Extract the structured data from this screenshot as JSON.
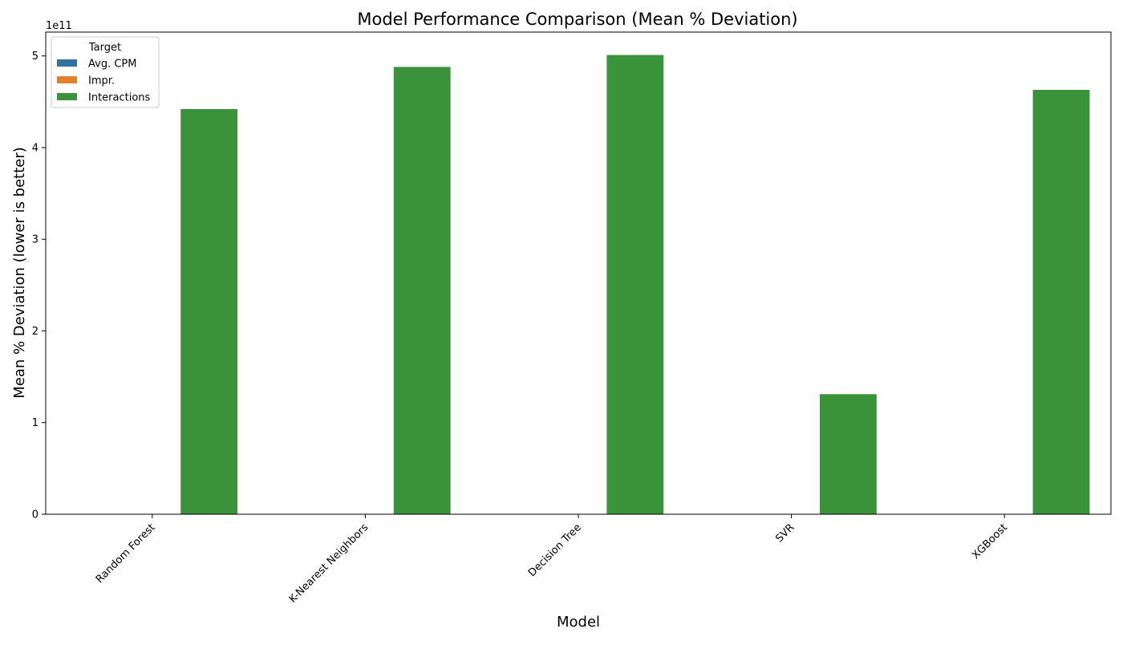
{
  "chart_data": {
    "type": "bar",
    "title": "Model Performance Comparison (Mean % Deviation)",
    "xlabel": "Model",
    "ylabel": "Mean % Deviation (lower is better)",
    "y_offset_label": "1e11",
    "y_scale": 100000000000,
    "ylim": [
      0,
      5.26
    ],
    "yticks": [
      0,
      1,
      2,
      3,
      4,
      5
    ],
    "categories": [
      "Random Forest",
      "K-Nearest Neighbors",
      "Decision Tree",
      "SVR",
      "XGBoost"
    ],
    "legend": {
      "title": "Target",
      "placement": "top-left"
    },
    "series": [
      {
        "name": "Avg. CPM",
        "color": "#3274a1",
        "values": [
          0,
          0,
          0,
          0,
          0
        ]
      },
      {
        "name": "Impr.",
        "color": "#e1812c",
        "values": [
          0,
          0,
          0,
          0,
          0
        ]
      },
      {
        "name": "Interactions",
        "color": "#3a923a",
        "values": [
          4.42,
          4.88,
          5.01,
          1.31,
          4.63
        ]
      }
    ],
    "grid": false
  }
}
